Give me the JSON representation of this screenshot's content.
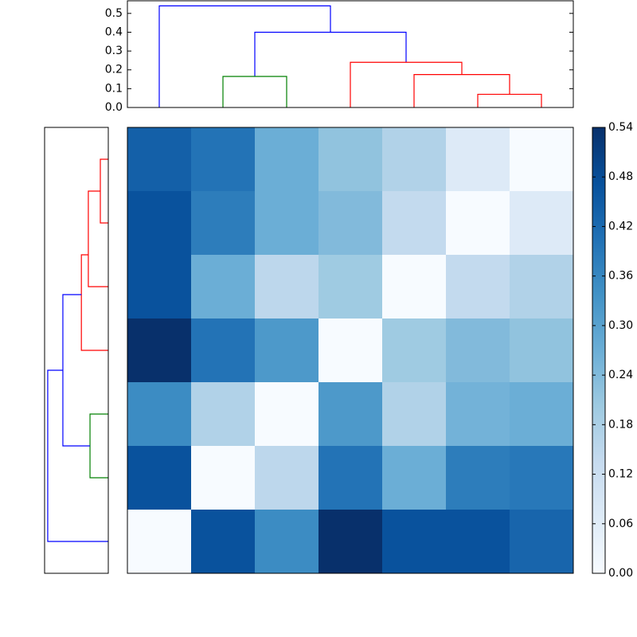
{
  "chart_data": [
    {
      "type": "heatmap",
      "matrix": [
        [
          0.44,
          0.4,
          0.27,
          0.22,
          0.17,
          0.07,
          0.0
        ],
        [
          0.47,
          0.38,
          0.27,
          0.24,
          0.14,
          0.0,
          0.07
        ],
        [
          0.47,
          0.27,
          0.15,
          0.2,
          0.0,
          0.14,
          0.17
        ],
        [
          0.54,
          0.4,
          0.32,
          0.0,
          0.2,
          0.24,
          0.22
        ],
        [
          0.35,
          0.17,
          0.0,
          0.32,
          0.17,
          0.26,
          0.27
        ],
        [
          0.47,
          0.0,
          0.15,
          0.4,
          0.27,
          0.38,
          0.39
        ],
        [
          0.0,
          0.47,
          0.35,
          0.54,
          0.47,
          0.47,
          0.43
        ]
      ],
      "vlim": [
        0,
        0.54
      ],
      "cmap": [
        "#f7fbff",
        "#deebf7",
        "#c6dbef",
        "#9ecae1",
        "#6baed6",
        "#4292c6",
        "#2171b5",
        "#08519c",
        "#08306b"
      ],
      "colorbar_ticks": [
        {
          "value": 0,
          "label": "0.00"
        },
        {
          "value": 0.06,
          "label": "0.06"
        },
        {
          "value": 0.12,
          "label": "0.12"
        },
        {
          "value": 0.18,
          "label": "0.18"
        },
        {
          "value": 0.24,
          "label": "0.24"
        },
        {
          "value": 0.3,
          "label": "0.30"
        },
        {
          "value": 0.36,
          "label": "0.36"
        },
        {
          "value": 0.42,
          "label": "0.42"
        },
        {
          "value": 0.48,
          "label": "0.48"
        },
        {
          "value": 0.54,
          "label": "0.54"
        }
      ]
    },
    {
      "type": "dendrogram",
      "orientation": "top",
      "ylim": [
        0,
        0.567
      ],
      "yticks": [
        {
          "value": 0,
          "label": "0.0"
        },
        {
          "value": 0.1,
          "label": "0.1"
        },
        {
          "value": 0.2,
          "label": "0.2"
        },
        {
          "value": 0.3,
          "label": "0.3"
        },
        {
          "value": 0.4,
          "label": "0.4"
        },
        {
          "value": 0.5,
          "label": "0.5"
        }
      ],
      "links": [
        {
          "leaf": [
            0,
            0,
            2.6875,
            2.6875
          ],
          "height": [
            0,
            0.54,
            0.54,
            0.4
          ],
          "color": "#0000ff"
        },
        {
          "leaf": [
            1.5,
            1.5,
            3.875,
            3.875
          ],
          "height": [
            0.165,
            0.4,
            0.4,
            0.24
          ],
          "color": "#0000ff"
        },
        {
          "leaf": [
            1,
            1,
            2,
            2
          ],
          "height": [
            0,
            0.165,
            0.165,
            0
          ],
          "color": "#008000"
        },
        {
          "leaf": [
            3,
            3,
            4.75,
            4.75
          ],
          "height": [
            0,
            0.24,
            0.24,
            0.175
          ],
          "color": "#ff0000"
        },
        {
          "leaf": [
            4,
            4,
            5.5,
            5.5
          ],
          "height": [
            0,
            0.175,
            0.175,
            0.07
          ],
          "color": "#ff0000"
        },
        {
          "leaf": [
            5,
            5,
            6,
            6
          ],
          "height": [
            0,
            0.07,
            0.07,
            0
          ],
          "color": "#ff0000"
        }
      ]
    },
    {
      "type": "dendrogram",
      "orientation": "left",
      "xlim": [
        0.568,
        0
      ],
      "links": [
        {
          "leaf": [
            0,
            0,
            1,
            1
          ],
          "height": [
            0,
            0.071,
            0.071,
            0
          ],
          "color": "#ff0000"
        },
        {
          "leaf": [
            0.5,
            0.5,
            2,
            2
          ],
          "height": [
            0.071,
            0.178,
            0.178,
            0
          ],
          "color": "#ff0000"
        },
        {
          "leaf": [
            1.5,
            1.5,
            3,
            3
          ],
          "height": [
            0.178,
            0.24,
            0.24,
            0
          ],
          "color": "#ff0000"
        },
        {
          "leaf": [
            4,
            4,
            5,
            5
          ],
          "height": [
            0,
            0.163,
            0.163,
            0
          ],
          "color": "#008000"
        },
        {
          "leaf": [
            2.125,
            2.125,
            4.5,
            4.5
          ],
          "height": [
            0.24,
            0.405,
            0.405,
            0.163
          ],
          "color": "#0000ff"
        },
        {
          "leaf": [
            3.3125,
            3.3125,
            6,
            6
          ],
          "height": [
            0.405,
            0.54,
            0.54,
            0
          ],
          "color": "#0000ff"
        }
      ]
    }
  ]
}
